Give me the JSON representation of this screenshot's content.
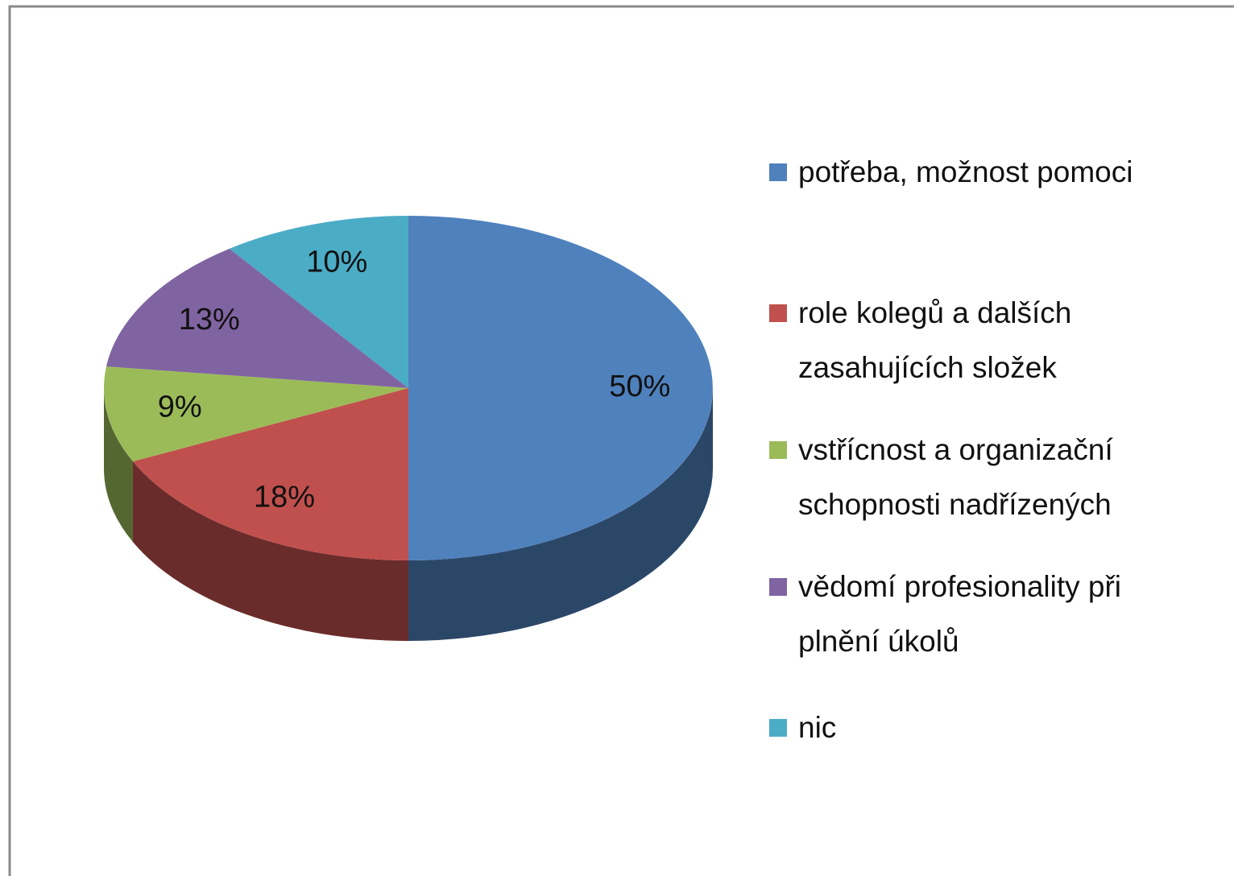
{
  "chart_data": {
    "type": "pie",
    "categories": [
      "potřeba, možnost pomoci",
      "role kolegů a dalších zasahujících složek",
      "vstřícnost a organizační schopnosti nadřízených",
      "vědomí profesionality při plnění úkolů",
      "nic"
    ],
    "values": [
      50,
      18,
      9,
      13,
      10
    ],
    "value_labels": [
      "50%",
      "18%",
      "9%",
      "13%",
      "10%"
    ],
    "colors": [
      "#4f81bd",
      "#c0504d",
      "#9bbb59",
      "#8064a2",
      "#4bacc6"
    ],
    "legend": "right"
  }
}
